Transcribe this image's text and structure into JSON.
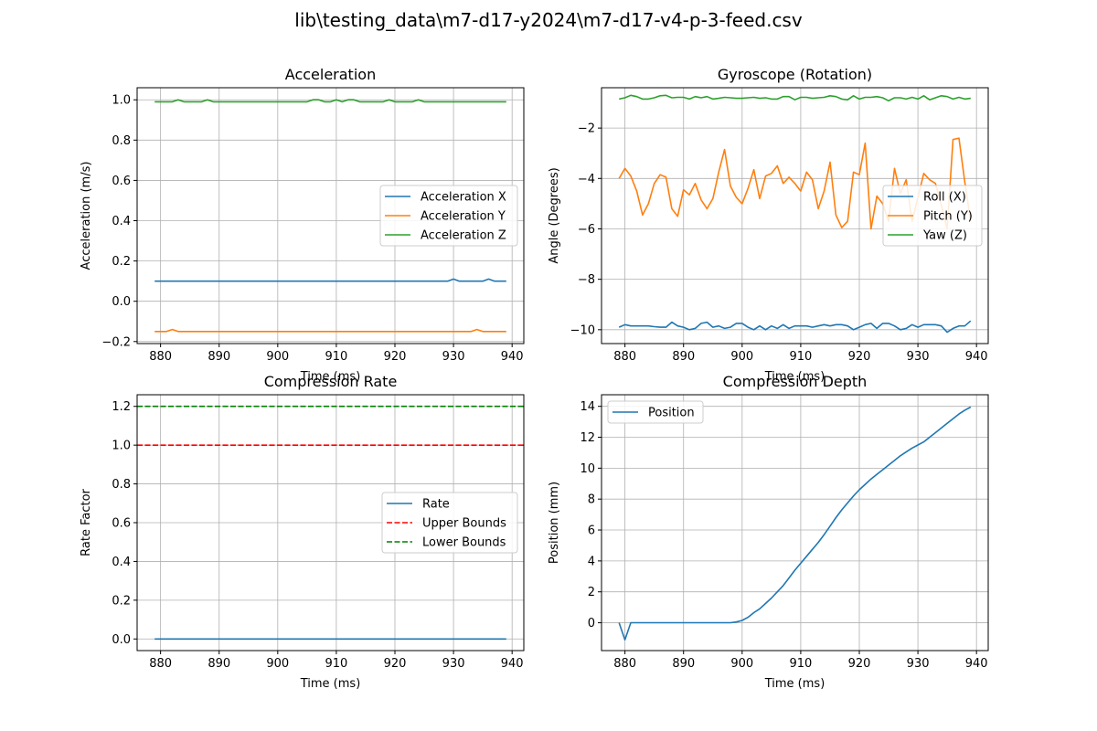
{
  "figure": {
    "suptitle": "lib\\testing_data\\m7-d17-y2024\\m7-d17-v4-p-3-feed.csv"
  },
  "colors": {
    "blue": "#1f77b4",
    "orange": "#ff7f0e",
    "green": "#2ca02c",
    "red": "#ff0000",
    "dark_green": "#008000"
  },
  "chart_data": [
    {
      "id": "acceleration",
      "type": "line",
      "title": "Acceleration",
      "xlabel": "Time (ms)",
      "ylabel": "Acceleration (m/s)",
      "xlim": [
        876,
        942
      ],
      "ylim": [
        -0.21,
        1.06
      ],
      "xticks": [
        880,
        890,
        900,
        910,
        920,
        930,
        940
      ],
      "yticks": [
        -0.2,
        0.0,
        0.2,
        0.4,
        0.6,
        0.8,
        1.0
      ],
      "ytick_labels": [
        "−0.2",
        "0.0",
        "0.2",
        "0.4",
        "0.6",
        "0.8",
        "1.0"
      ],
      "grid": true,
      "legend": "center-right",
      "series": [
        {
          "name": "Acceleration X",
          "color": "#1f77b4",
          "style": "solid",
          "x": [
            879,
            890,
            900,
            910,
            920,
            928,
            929,
            930,
            931,
            934,
            935,
            936,
            937,
            939
          ],
          "y": [
            0.1,
            0.1,
            0.1,
            0.1,
            0.1,
            0.1,
            0.1,
            0.11,
            0.1,
            0.1,
            0.1,
            0.11,
            0.1,
            0.1
          ]
        },
        {
          "name": "Acceleration Y",
          "color": "#ff7f0e",
          "style": "solid",
          "x": [
            879,
            881,
            882,
            883,
            890,
            900,
            910,
            920,
            932,
            933,
            934,
            935,
            939
          ],
          "y": [
            -0.15,
            -0.15,
            -0.14,
            -0.15,
            -0.15,
            -0.15,
            -0.15,
            -0.15,
            -0.15,
            -0.15,
            -0.14,
            -0.15,
            -0.15
          ]
        },
        {
          "name": "Acceleration Z",
          "color": "#2ca02c",
          "style": "solid",
          "x": [
            879,
            882,
            883,
            884,
            887,
            888,
            889,
            905,
            906,
            907,
            908,
            909,
            910,
            911,
            912,
            913,
            914,
            915,
            918,
            919,
            920,
            923,
            924,
            925,
            939
          ],
          "y": [
            0.99,
            0.99,
            1.0,
            0.99,
            0.99,
            1.0,
            0.99,
            0.99,
            1.0,
            1.0,
            0.99,
            0.99,
            1.0,
            0.99,
            1.0,
            1.0,
            0.99,
            0.99,
            0.99,
            1.0,
            0.99,
            0.99,
            1.0,
            0.99,
            0.99
          ]
        }
      ]
    },
    {
      "id": "gyroscope",
      "type": "line",
      "title": "Gyroscope (Rotation)",
      "xlabel": "Time (ms)",
      "ylabel": "Angle (Degrees)",
      "xlim": [
        876,
        942
      ],
      "ylim": [
        -10.55,
        -0.4
      ],
      "xticks": [
        880,
        890,
        900,
        910,
        920,
        930,
        940
      ],
      "yticks": [
        -10,
        -8,
        -6,
        -4,
        -2
      ],
      "ytick_labels": [
        "−10",
        "−8",
        "−6",
        "−4",
        "−2"
      ],
      "grid": true,
      "legend": "center-right",
      "series": [
        {
          "name": "Roll (X)",
          "color": "#1f77b4",
          "style": "solid",
          "x": [
            879,
            880,
            881,
            882,
            883,
            884,
            885,
            886,
            887,
            888,
            889,
            890,
            891,
            892,
            893,
            894,
            895,
            896,
            897,
            898,
            899,
            900,
            901,
            902,
            903,
            904,
            905,
            906,
            907,
            908,
            909,
            910,
            911,
            912,
            913,
            914,
            915,
            916,
            917,
            918,
            919,
            920,
            921,
            922,
            923,
            924,
            925,
            926,
            927,
            928,
            929,
            930,
            931,
            932,
            933,
            934,
            935,
            936,
            937,
            938,
            939
          ],
          "y": [
            -9.9,
            -9.8,
            -9.85,
            -9.85,
            -9.85,
            -9.85,
            -9.88,
            -9.9,
            -9.9,
            -9.7,
            -9.85,
            -9.9,
            -10.0,
            -9.95,
            -9.75,
            -9.7,
            -9.9,
            -9.85,
            -9.95,
            -9.9,
            -9.75,
            -9.75,
            -9.9,
            -10.0,
            -9.85,
            -10.0,
            -9.85,
            -9.95,
            -9.8,
            -9.95,
            -9.85,
            -9.85,
            -9.85,
            -9.9,
            -9.85,
            -9.8,
            -9.85,
            -9.8,
            -9.8,
            -9.85,
            -10.0,
            -9.9,
            -9.8,
            -9.75,
            -9.95,
            -9.75,
            -9.75,
            -9.85,
            -10.0,
            -9.95,
            -9.8,
            -9.9,
            -9.8,
            -9.8,
            -9.8,
            -9.85,
            -10.1,
            -9.95,
            -9.85,
            -9.85,
            -9.65
          ]
        },
        {
          "name": "Pitch (Y)",
          "color": "#ff7f0e",
          "style": "solid",
          "x": [
            879,
            880,
            881,
            882,
            883,
            884,
            885,
            886,
            887,
            888,
            889,
            890,
            891,
            892,
            893,
            894,
            895,
            896,
            897,
            898,
            899,
            900,
            901,
            902,
            903,
            904,
            905,
            906,
            907,
            908,
            909,
            910,
            911,
            912,
            913,
            914,
            915,
            916,
            917,
            918,
            919,
            920,
            921,
            922,
            923,
            924,
            925,
            926,
            927,
            928,
            929,
            930,
            931,
            932,
            933,
            934,
            935,
            936,
            937,
            938,
            939
          ],
          "y": [
            -4.0,
            -3.6,
            -3.9,
            -4.5,
            -5.45,
            -5.0,
            -4.2,
            -3.85,
            -3.95,
            -5.2,
            -5.5,
            -4.45,
            -4.65,
            -4.2,
            -4.85,
            -5.2,
            -4.8,
            -3.75,
            -2.85,
            -4.3,
            -4.75,
            -5.0,
            -4.4,
            -3.65,
            -4.8,
            -3.9,
            -3.8,
            -3.5,
            -4.2,
            -3.95,
            -4.2,
            -4.5,
            -3.75,
            -4.05,
            -5.2,
            -4.5,
            -3.35,
            -5.45,
            -5.95,
            -5.7,
            -3.75,
            -3.85,
            -2.6,
            -6.0,
            -4.7,
            -5.0,
            -5.7,
            -3.6,
            -4.6,
            -4.05,
            -5.7,
            -4.75,
            -3.8,
            -4.05,
            -4.2,
            -5.05,
            -6.0,
            -2.45,
            -2.4,
            -4.15,
            -5.7
          ]
        },
        {
          "name": "Yaw (Z)",
          "color": "#2ca02c",
          "style": "solid",
          "x": [
            879,
            880,
            881,
            882,
            883,
            884,
            885,
            886,
            887,
            888,
            889,
            890,
            891,
            892,
            893,
            894,
            895,
            896,
            897,
            898,
            899,
            900,
            901,
            902,
            903,
            904,
            905,
            906,
            907,
            908,
            909,
            910,
            911,
            912,
            913,
            914,
            915,
            916,
            917,
            918,
            919,
            920,
            921,
            922,
            923,
            924,
            925,
            926,
            927,
            928,
            929,
            930,
            931,
            932,
            933,
            934,
            935,
            936,
            937,
            938,
            939
          ],
          "y": [
            -0.85,
            -0.8,
            -0.7,
            -0.75,
            -0.85,
            -0.85,
            -0.8,
            -0.72,
            -0.7,
            -0.8,
            -0.78,
            -0.78,
            -0.85,
            -0.75,
            -0.8,
            -0.75,
            -0.85,
            -0.82,
            -0.78,
            -0.8,
            -0.82,
            -0.82,
            -0.8,
            -0.78,
            -0.82,
            -0.8,
            -0.85,
            -0.85,
            -0.75,
            -0.75,
            -0.88,
            -0.78,
            -0.78,
            -0.82,
            -0.8,
            -0.78,
            -0.72,
            -0.75,
            -0.85,
            -0.88,
            -0.72,
            -0.85,
            -0.78,
            -0.78,
            -0.75,
            -0.8,
            -0.92,
            -0.8,
            -0.8,
            -0.85,
            -0.78,
            -0.85,
            -0.72,
            -0.88,
            -0.8,
            -0.72,
            -0.75,
            -0.85,
            -0.78,
            -0.85,
            -0.82
          ]
        }
      ]
    },
    {
      "id": "compression-rate",
      "type": "line",
      "title": "Compression Rate",
      "xlabel": "Time (ms)",
      "ylabel": "Rate Factor",
      "xlim": [
        876,
        942
      ],
      "ylim": [
        -0.06,
        1.26
      ],
      "xticks": [
        880,
        890,
        900,
        910,
        920,
        930,
        940
      ],
      "yticks": [
        0.0,
        0.2,
        0.4,
        0.6,
        0.8,
        1.0,
        1.2
      ],
      "ytick_labels": [
        "0.0",
        "0.2",
        "0.4",
        "0.6",
        "0.8",
        "1.0",
        "1.2"
      ],
      "grid": true,
      "legend": "center-right",
      "series": [
        {
          "name": "Rate",
          "color": "#1f77b4",
          "style": "solid",
          "x": [
            879,
            939
          ],
          "y": [
            0.0,
            0.0
          ]
        },
        {
          "name": "Upper Bounds",
          "color": "#ff0000",
          "style": "dashed",
          "hline": 1.0
        },
        {
          "name": "Lower Bounds",
          "color": "#008000",
          "style": "dashed",
          "hline": 1.2
        }
      ]
    },
    {
      "id": "compression-depth",
      "type": "line",
      "title": "Compression Depth",
      "xlabel": "Time (ms)",
      "ylabel": "Position (mm)",
      "xlim": [
        876,
        942
      ],
      "ylim": [
        -1.8,
        14.75
      ],
      "xticks": [
        880,
        890,
        900,
        910,
        920,
        930,
        940
      ],
      "yticks": [
        0,
        2,
        4,
        6,
        8,
        10,
        12,
        14
      ],
      "ytick_labels": [
        "0",
        "2",
        "4",
        "6",
        "8",
        "10",
        "12",
        "14"
      ],
      "grid": true,
      "legend": "upper-left",
      "series": [
        {
          "name": "Position",
          "color": "#1f77b4",
          "style": "solid",
          "x": [
            879,
            880,
            881,
            882,
            885,
            890,
            895,
            898,
            899,
            900,
            901,
            902,
            903,
            904,
            905,
            906,
            907,
            908,
            909,
            910,
            911,
            912,
            913,
            914,
            915,
            916,
            917,
            918,
            919,
            920,
            921,
            922,
            923,
            924,
            925,
            926,
            927,
            928,
            929,
            930,
            931,
            932,
            933,
            934,
            935,
            936,
            937,
            938,
            939
          ],
          "y": [
            0.0,
            -1.1,
            0.0,
            0.0,
            0.0,
            0.0,
            0.0,
            0.0,
            0.05,
            0.15,
            0.35,
            0.65,
            0.9,
            1.25,
            1.6,
            2.0,
            2.4,
            2.9,
            3.4,
            3.85,
            4.3,
            4.75,
            5.2,
            5.7,
            6.25,
            6.8,
            7.3,
            7.75,
            8.2,
            8.6,
            8.95,
            9.3,
            9.6,
            9.9,
            10.2,
            10.5,
            10.8,
            11.05,
            11.3,
            11.5,
            11.7,
            12.0,
            12.3,
            12.6,
            12.9,
            13.2,
            13.5,
            13.75,
            13.95
          ]
        }
      ]
    }
  ]
}
